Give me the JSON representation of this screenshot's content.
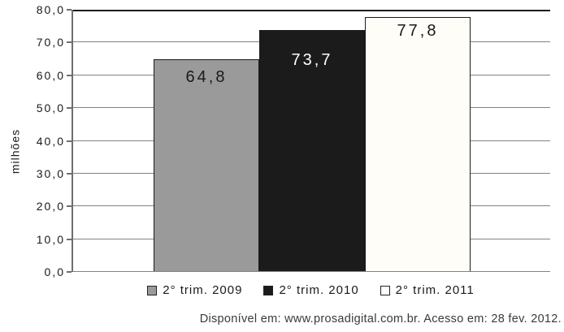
{
  "chart_data": {
    "type": "bar",
    "title": "",
    "xlabel": "",
    "ylabel": "milhões",
    "categories": [
      "2° trim. 2009",
      "2° trim. 2010",
      "2° trim. 2011"
    ],
    "values": [
      64.8,
      73.7,
      77.8
    ],
    "value_labels": [
      "64,8",
      "73,7",
      "77,8"
    ],
    "ylim": [
      0,
      80
    ],
    "ytick_step": 10,
    "ytick_labels": [
      "0,0",
      "10,0",
      "20,0",
      "30,0",
      "40,0",
      "50,0",
      "60,0",
      "70,0",
      "80,0"
    ],
    "grid": true,
    "legend_position": "bottom",
    "bar_colors": [
      "#9a9a9a",
      "#1b1b1b",
      "#fffdf8"
    ],
    "bar_border_color": "#1a1a1a",
    "value_label_colors": [
      "#1a1a1a",
      "#ffffff",
      "#1a1a1a"
    ],
    "legend": [
      {
        "label": "2° trim. 2009",
        "color": "#9a9a9a"
      },
      {
        "label": "2° trim. 2010",
        "color": "#1b1b1b"
      },
      {
        "label": "2° trim. 2011",
        "color": "#fffdf8"
      }
    ]
  },
  "source": {
    "text": "Disponível em: www.prosadigital.com.br. Acesso em: 28 fev. 2012."
  }
}
